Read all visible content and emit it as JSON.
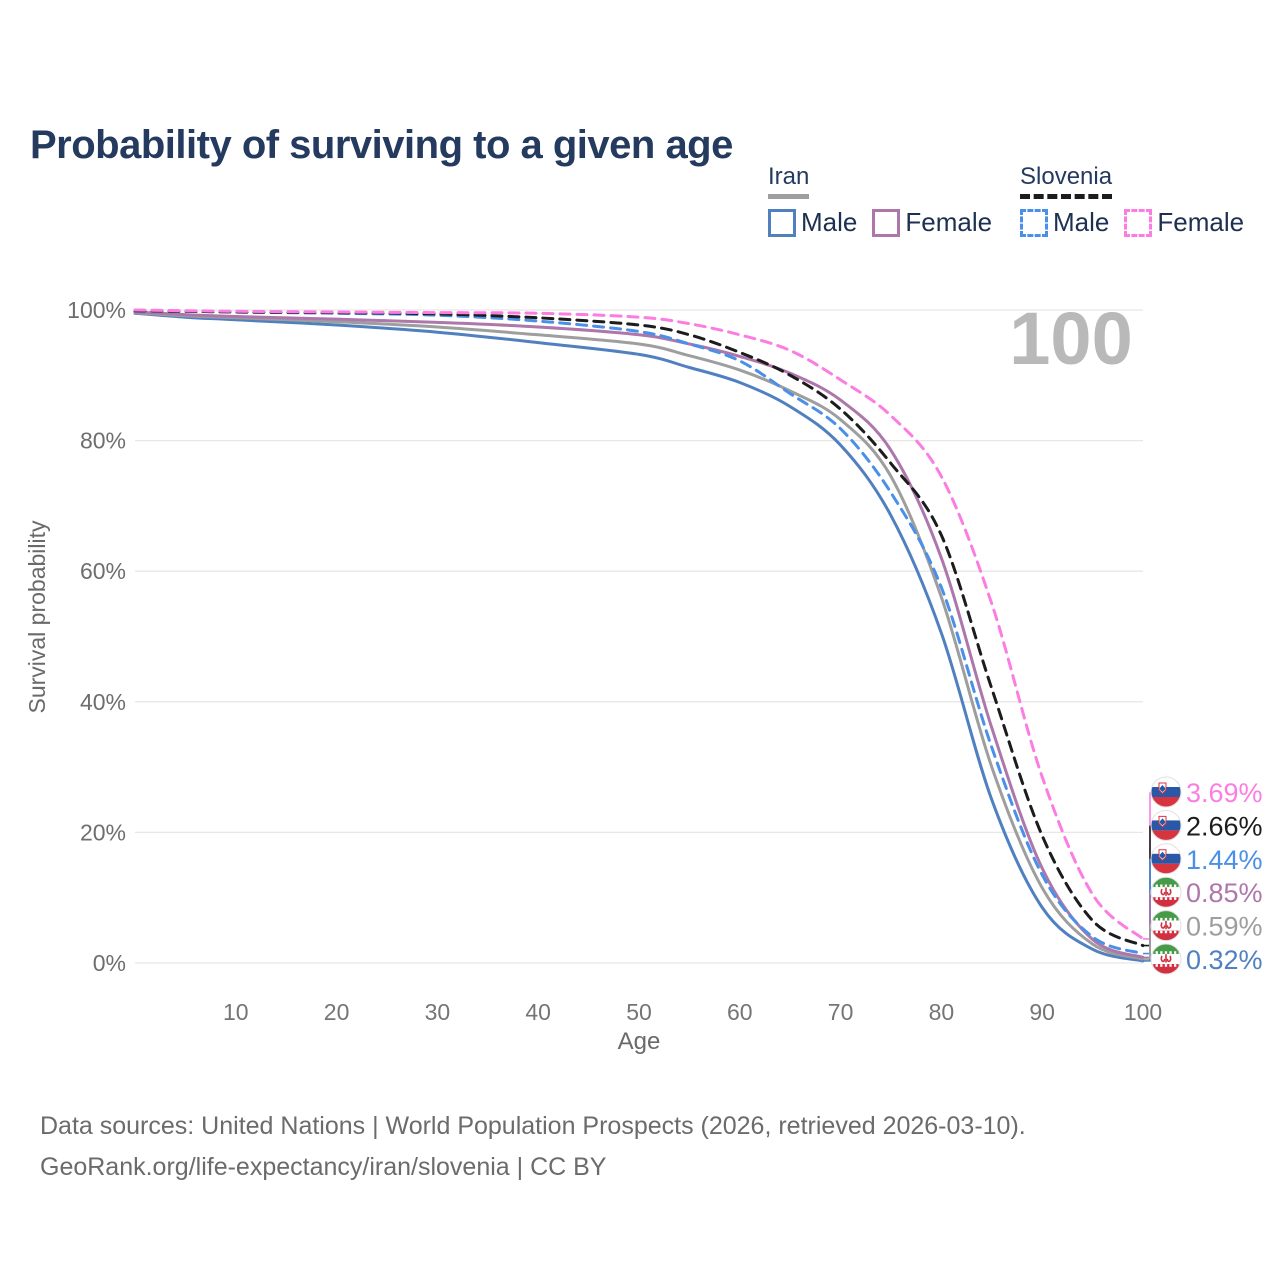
{
  "title": "Probability of surviving to a given age",
  "legend": {
    "groups": [
      {
        "label": "Iran",
        "underline_color": "#9e9e9e",
        "underline_style": "solid",
        "items": [
          {
            "label": "Male",
            "color": "#5080c0",
            "dash": false
          },
          {
            "label": "Female",
            "color": "#ad77ab",
            "dash": false
          }
        ]
      },
      {
        "label": "Slovenia",
        "underline_color": "#1c1c1c",
        "underline_style": "dashed",
        "items": [
          {
            "label": "Male",
            "color": "#4a90e8",
            "dash": true
          },
          {
            "label": "Female",
            "color": "#fc7de2",
            "dash": true
          }
        ]
      }
    ]
  },
  "chart_data": {
    "type": "line",
    "title": "Probability of surviving to a given age",
    "xlabel": "Age",
    "ylabel": "Survival probability",
    "xlim": [
      0,
      100
    ],
    "ylim": [
      0,
      100
    ],
    "x_ticks": [
      10,
      20,
      30,
      40,
      50,
      60,
      70,
      80,
      90,
      100
    ],
    "y_ticks": [
      0,
      20,
      40,
      60,
      80,
      100
    ],
    "y_tick_suffix": "%",
    "grid": "horizontal",
    "watermark": "100",
    "legend_position": "top-right",
    "ages": [
      0,
      5,
      10,
      20,
      30,
      40,
      50,
      55,
      60,
      65,
      70,
      75,
      80,
      85,
      90,
      95,
      100
    ],
    "series": [
      {
        "name": "slovenia_female",
        "legend": "Slovenia Female",
        "flag": "si",
        "color": "#fc7de2",
        "dash": true,
        "end_label": "3.69%",
        "values": [
          100,
          99.9,
          99.8,
          99.7,
          99.6,
          99.5,
          98.9,
          97.9,
          96.2,
          93.8,
          89.3,
          83.8,
          74.5,
          55.0,
          28.5,
          10.5,
          3.69
        ]
      },
      {
        "name": "slovenia_total",
        "legend": "Slovenia",
        "flag": "si",
        "color": "#1c1c1c",
        "dash": true,
        "end_label": "2.66%",
        "values": [
          99.9,
          99.8,
          99.7,
          99.6,
          99.4,
          98.8,
          97.7,
          96.2,
          93.5,
          90.0,
          84.8,
          76.5,
          65.5,
          42.0,
          19.5,
          6.5,
          2.66
        ]
      },
      {
        "name": "slovenia_male",
        "legend": "Slovenia Male",
        "flag": "si",
        "color": "#4a90e8",
        "dash": true,
        "end_label": "1.44%",
        "values": [
          99.9,
          99.8,
          99.7,
          99.5,
          99.2,
          98.3,
          96.7,
          94.8,
          92.2,
          87.2,
          81.8,
          72.0,
          57.5,
          33.0,
          13.5,
          4.0,
          1.44
        ]
      },
      {
        "name": "iran_female",
        "legend": "Iran Female",
        "flag": "ir",
        "color": "#ad77ab",
        "dash": false,
        "end_label": "0.85%",
        "values": [
          99.7,
          99.3,
          99.0,
          98.6,
          98.1,
          97.4,
          96.2,
          94.8,
          92.9,
          90.3,
          86.2,
          78.5,
          62.0,
          36.0,
          14.5,
          3.6,
          0.85
        ]
      },
      {
        "name": "iran_total",
        "legend": "Iran",
        "flag": "ir",
        "color": "#9e9e9e",
        "dash": false,
        "end_label": "0.59%",
        "values": [
          99.6,
          99.1,
          98.8,
          98.2,
          97.4,
          96.2,
          94.8,
          93.0,
          90.8,
          87.6,
          83.2,
          74.5,
          56.0,
          30.0,
          11.5,
          2.9,
          0.59
        ]
      },
      {
        "name": "iran_male",
        "legend": "Iran Male",
        "flag": "ir",
        "color": "#5080c0",
        "dash": false,
        "end_label": "0.32%",
        "values": [
          99.5,
          98.9,
          98.5,
          97.7,
          96.6,
          95.0,
          93.2,
          91.2,
          88.9,
          85.2,
          79.3,
          68.5,
          50.5,
          25.0,
          8.5,
          2.1,
          0.32
        ]
      }
    ],
    "flag_colors": {
      "si": {
        "top": "#ffffff",
        "mid": "#2b57a7",
        "bottom": "#d8343f"
      },
      "ir": {
        "top": "#459b47",
        "mid": "#ffffff",
        "bottom": "#d13040",
        "emblem": "#d13040"
      }
    }
  },
  "footer": {
    "line1": "Data sources: United Nations | World Population Prospects (2026, retrieved 2026-03-10).",
    "line2": "GeoRank.org/life-expectancy/iran/slovenia | CC BY"
  }
}
